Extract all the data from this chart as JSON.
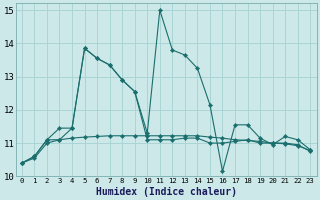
{
  "xlabel": "Humidex (Indice chaleur)",
  "background_color": "#cce8e8",
  "grid_color": "#aad4d4",
  "line_color": "#1a6e6e",
  "xlim": [
    -0.5,
    23.5
  ],
  "ylim": [
    10,
    15.2
  ],
  "yticks": [
    10,
    11,
    12,
    13,
    14,
    15
  ],
  "xticks": [
    0,
    1,
    2,
    3,
    4,
    5,
    6,
    7,
    8,
    9,
    10,
    11,
    12,
    13,
    14,
    15,
    16,
    17,
    18,
    19,
    20,
    21,
    22,
    23
  ],
  "series1_y": [
    10.4,
    10.6,
    11.1,
    11.45,
    11.45,
    13.85,
    13.55,
    13.35,
    12.9,
    12.55,
    11.3,
    15.0,
    13.8,
    13.65,
    13.25,
    12.15,
    10.15,
    11.55,
    11.55,
    11.15,
    10.95,
    11.2,
    11.1,
    10.8
  ],
  "series2_y": [
    10.4,
    10.6,
    11.1,
    11.1,
    11.45,
    13.85,
    13.55,
    13.35,
    12.9,
    12.55,
    11.1,
    11.1,
    11.1,
    11.15,
    11.15,
    11.0,
    11.0,
    11.05,
    11.1,
    11.0,
    11.0,
    11.0,
    10.95,
    10.75
  ],
  "series3_y": [
    10.4,
    10.55,
    11.0,
    11.1,
    11.15,
    11.18,
    11.2,
    11.22,
    11.22,
    11.22,
    11.22,
    11.22,
    11.22,
    11.22,
    11.22,
    11.18,
    11.15,
    11.1,
    11.08,
    11.05,
    11.0,
    10.98,
    10.92,
    10.78
  ]
}
